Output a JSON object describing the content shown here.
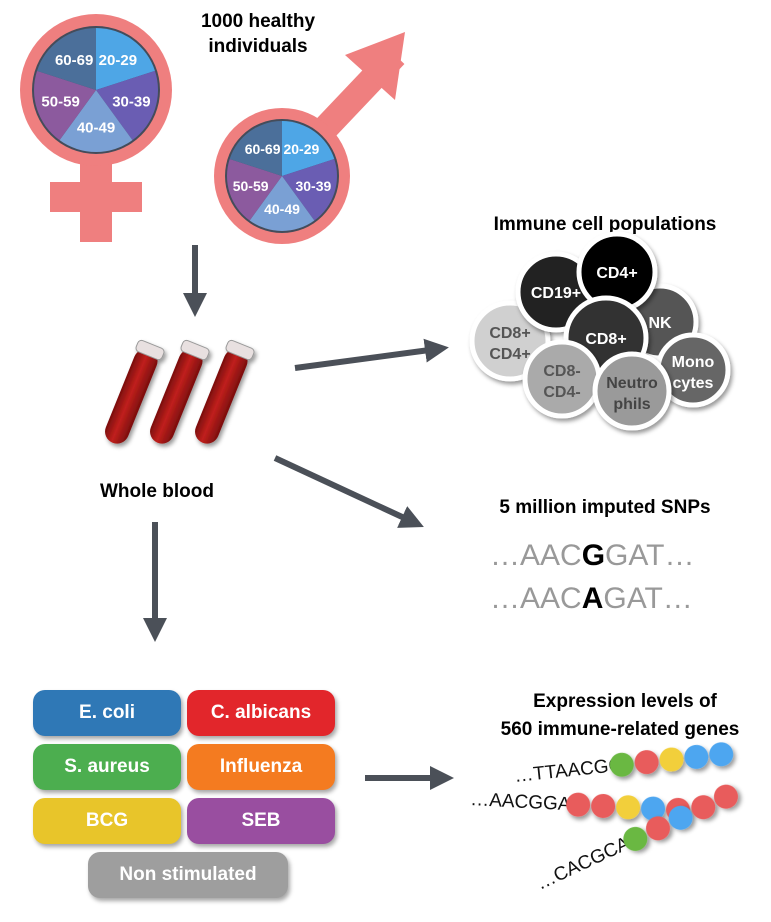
{
  "cohort": {
    "title_line1": "1000 healthy",
    "title_line2": "individuals",
    "age_groups": [
      "20-29",
      "30-39",
      "40-49",
      "50-59",
      "60-69"
    ],
    "age_colors": [
      "#4ea6e6",
      "#6a5db3",
      "#7aa0d4",
      "#8c5a9e",
      "#4b6f9a"
    ],
    "symbol_color": "#ef7f7f"
  },
  "sample": {
    "label": "Whole blood"
  },
  "immune": {
    "title": "Immune cell populations",
    "cells": [
      {
        "line1": "CD8+",
        "line2": "CD4+",
        "fill": "#d0d0d0",
        "text": "#555"
      },
      {
        "line1": "CD19+",
        "line2": "",
        "fill": "#222222",
        "text": "#fff"
      },
      {
        "line1": "NK",
        "line2": "",
        "fill": "#555555",
        "text": "#fff"
      },
      {
        "line1": "CD4+",
        "line2": "",
        "fill": "#000000",
        "text": "#fff"
      },
      {
        "line1": "CD8+",
        "line2": "",
        "fill": "#333333",
        "text": "#fff"
      },
      {
        "line1": "CD8-",
        "line2": "CD4-",
        "fill": "#aaaaaa",
        "text": "#555"
      },
      {
        "line1": "Mono",
        "line2": "cytes",
        "fill": "#666666",
        "text": "#fff"
      },
      {
        "line1": "Neutro",
        "line2": "phils",
        "fill": "#9a9a9a",
        "text": "#444"
      }
    ]
  },
  "snps": {
    "title": "5 million imputed SNPs",
    "seq1": {
      "prefix": "…AAC",
      "allele": "G",
      "suffix": "GAT…"
    },
    "seq2": {
      "prefix": "…AAC",
      "allele": "A",
      "suffix": "GAT…"
    }
  },
  "expression": {
    "title_line1": "Expression levels of",
    "title_line2": "560 immune-related genes",
    "strands": [
      {
        "seq": "…TTAACGG",
        "beads": [
          "#6ab843",
          "#e85c5c",
          "#f2cf3a",
          "#4ea6f0",
          "#4ea6f0"
        ]
      },
      {
        "seq": "…AACGGAT",
        "beads": [
          "#e85c5c",
          "#e85c5c",
          "#f2cf3a",
          "#4ea6f0",
          "#e85c5c"
        ]
      },
      {
        "seq": "…CACGCAA",
        "beads": [
          "#6ab843",
          "#e85c5c",
          "#4ea6f0",
          "#e85c5c",
          "#e85c5c"
        ]
      }
    ]
  },
  "stimuli": [
    {
      "label": "E. coli",
      "color": "#2f78b6"
    },
    {
      "label": "C. albicans",
      "color": "#e2262b"
    },
    {
      "label": "S. aureus",
      "color": "#4cae4f"
    },
    {
      "label": "Influenza",
      "color": "#f47b20"
    },
    {
      "label": "BCG",
      "color": "#e8c52a"
    },
    {
      "label": "SEB",
      "color": "#994ea0"
    },
    {
      "label": "Non stimulated",
      "color": "#9e9e9e"
    }
  ],
  "arrow_color": "#4b5058"
}
